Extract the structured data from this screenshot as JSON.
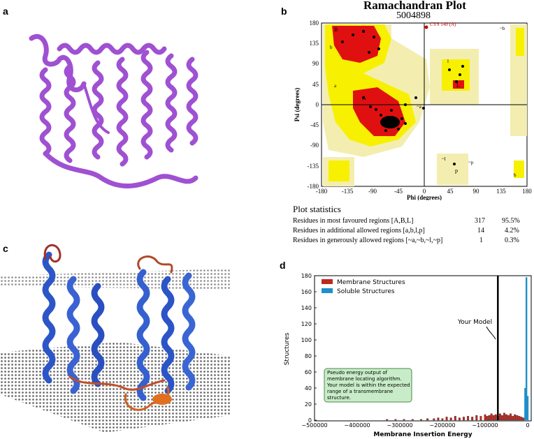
{
  "panels": {
    "a": "a",
    "b": "b",
    "c": "c",
    "d": "d"
  },
  "rama": {
    "title": "Ramachandran Plot",
    "subtitle": "5004898",
    "xlabel": "Phi (degrees)",
    "ylabel": "Psi (degrees)",
    "xticks": [
      "-180",
      "-135",
      "-90",
      "-45",
      "0",
      "45",
      "90",
      "135",
      "180"
    ],
    "yticks": [
      "180",
      "135",
      "90",
      "45",
      "0",
      "-45",
      "-90",
      "-135",
      "-180"
    ],
    "outlier_label": "CYS 140 (A)",
    "region_letters": [
      "B",
      "b",
      "a",
      "A",
      "~a",
      "~b",
      "p",
      "~p",
      "~l",
      "L",
      "l",
      "b"
    ],
    "colors": {
      "core": "#e01010",
      "allowed": "#f7f000",
      "generous": "#f3eeb0",
      "disallowed": "#ffffff"
    }
  },
  "stats": {
    "heading": "Plot statistics",
    "rows": [
      {
        "label": "Residues in most favoured regions [A,B,L]",
        "count": "317",
        "pct": "95.5%"
      },
      {
        "label": "Residues in additional allowed regions [a,b,l,p]",
        "count": "14",
        "pct": "4.2%"
      },
      {
        "label": "Residues in generously allowed regions [~a,~b,~l,~p]",
        "count": "1",
        "pct": "0.3%"
      }
    ]
  },
  "chart_data": {
    "type": "bar",
    "xlabel": "Membrane Insertion Energy",
    "ylabel": "Structures",
    "xlim": [
      -500000,
      0
    ],
    "ylim": [
      0,
      180
    ],
    "xticks": [
      "−500000",
      "−400000",
      "−300000",
      "−200000",
      "−100000",
      "0"
    ],
    "yticks": [
      "0",
      "20",
      "40",
      "60",
      "80",
      "100",
      "120",
      "140",
      "160",
      "180"
    ],
    "legend": {
      "placement": "top-left",
      "entries": [
        "Membrane Structures",
        "Soluble Structures"
      ]
    },
    "series": [
      {
        "name": "Membrane Structures",
        "color": "#c0281e",
        "x": [
          -330000,
          -310000,
          -290000,
          -270000,
          -250000,
          -235000,
          -220000,
          -210000,
          -200000,
          -190000,
          -180000,
          -170000,
          -160000,
          -150000,
          -140000,
          -130000,
          -120000,
          -110000,
          -100000,
          -95000,
          -90000,
          -85000,
          -80000,
          -75000,
          -70000,
          -65000,
          -60000,
          -55000,
          -50000,
          -45000,
          -40000,
          -35000,
          -30000,
          -25000,
          -20000,
          -15000,
          -10000
        ],
        "values": [
          1,
          1,
          1,
          1,
          1,
          2,
          2,
          3,
          2,
          4,
          3,
          5,
          3,
          4,
          5,
          4,
          6,
          5,
          7,
          5,
          6,
          8,
          6,
          7,
          5,
          8,
          6,
          9,
          7,
          6,
          8,
          5,
          7,
          6,
          5,
          4,
          3
        ]
      },
      {
        "name": "Soluble Structures",
        "color": "#1f8fc8",
        "x": [
          -6000,
          -3000,
          0
        ],
        "values": [
          40,
          178,
          30
        ]
      }
    ],
    "annotations": {
      "your_model_label": "Your Model",
      "your_model_x": -70000,
      "textbox": "Pseudo energy output of membrane locating algorithm. Your model is within the expected range of a transmembrane structure."
    }
  }
}
